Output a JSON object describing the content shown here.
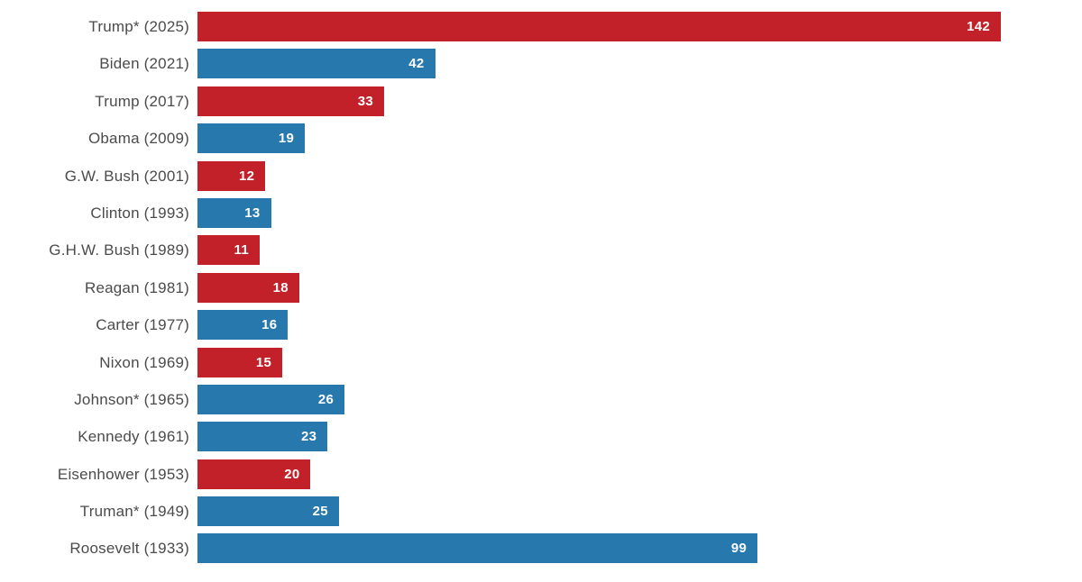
{
  "chart_data": {
    "type": "bar",
    "orientation": "horizontal",
    "title": "",
    "xlabel": "",
    "ylabel": "",
    "xlim": [
      0,
      142
    ],
    "grid": false,
    "legend": false,
    "categories": [
      "Trump* (2025)",
      "Biden (2021)",
      "Trump (2017)",
      "Obama (2009)",
      "G.W. Bush (2001)",
      "Clinton (1993)",
      "G.H.W. Bush (1989)",
      "Reagan (1981)",
      "Carter (1977)",
      "Nixon (1969)",
      "Johnson* (1965)",
      "Kennedy (1961)",
      "Eisenhower (1953)",
      "Truman* (1949)",
      "Roosevelt (1933)"
    ],
    "values": [
      142,
      42,
      33,
      19,
      12,
      13,
      11,
      18,
      16,
      15,
      26,
      23,
      20,
      25,
      99
    ],
    "parties": [
      "R",
      "D",
      "R",
      "D",
      "R",
      "D",
      "R",
      "R",
      "D",
      "R",
      "D",
      "D",
      "R",
      "D",
      "D"
    ],
    "party_colors": {
      "R": "#c3212a",
      "D": "#2678ad"
    },
    "value_label_color": "#ffffff",
    "category_label_color": "#4b4b4b",
    "background_color": "#ffffff"
  }
}
